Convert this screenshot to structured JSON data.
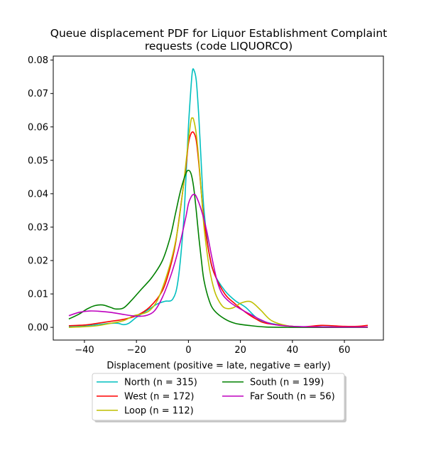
{
  "chart_data": {
    "type": "line",
    "title_line1": "Queue displacement PDF for Liquor Establishment Complaint",
    "title_line2": "requests (code LIQUORCO)",
    "xlabel": "Displacement (positive = late, negative = early)",
    "ylabel": "",
    "xlim": [
      -52,
      75
    ],
    "ylim": [
      -0.0038,
      0.0812
    ],
    "xticks": [
      -40,
      -20,
      0,
      20,
      40,
      60
    ],
    "yticks": [
      0.0,
      0.01,
      0.02,
      0.03,
      0.04,
      0.05,
      0.06,
      0.07,
      0.08
    ],
    "ytick_labels": [
      "0.00",
      "0.01",
      "0.02",
      "0.03",
      "0.04",
      "0.05",
      "0.06",
      "0.07",
      "0.08"
    ],
    "grid": false,
    "legend_placement": "below-center",
    "series": [
      {
        "name": "North (n = 315)",
        "color": "#00bfbf",
        "points": [
          [
            -46,
            0.0002
          ],
          [
            -40,
            0.0004
          ],
          [
            -35,
            0.0008
          ],
          [
            -30,
            0.0012
          ],
          [
            -27,
            0.0012
          ],
          [
            -25,
            0.0008
          ],
          [
            -23,
            0.0012
          ],
          [
            -20,
            0.003
          ],
          [
            -16,
            0.005
          ],
          [
            -12,
            0.007
          ],
          [
            -9,
            0.0078
          ],
          [
            -6,
            0.0085
          ],
          [
            -4,
            0.014
          ],
          [
            -2,
            0.03
          ],
          [
            -1,
            0.044
          ],
          [
            0,
            0.06
          ],
          [
            1,
            0.072
          ],
          [
            1.5,
            0.0765
          ],
          [
            2,
            0.0772
          ],
          [
            3,
            0.074
          ],
          [
            4,
            0.063
          ],
          [
            5,
            0.048
          ],
          [
            6,
            0.035
          ],
          [
            8,
            0.022
          ],
          [
            10,
            0.016
          ],
          [
            14,
            0.011
          ],
          [
            18,
            0.008
          ],
          [
            22,
            0.006
          ],
          [
            26,
            0.003
          ],
          [
            30,
            0.0015
          ],
          [
            40,
            0.0003
          ],
          [
            50,
            0.0002
          ],
          [
            60,
            0.0001
          ],
          [
            69,
            0.0001
          ]
        ]
      },
      {
        "name": "West (n = 172)",
        "color": "#ff0000",
        "points": [
          [
            -46,
            0.0005
          ],
          [
            -40,
            0.0007
          ],
          [
            -35,
            0.0012
          ],
          [
            -30,
            0.0018
          ],
          [
            -25,
            0.0024
          ],
          [
            -20,
            0.0035
          ],
          [
            -15,
            0.006
          ],
          [
            -10,
            0.011
          ],
          [
            -7,
            0.018
          ],
          [
            -5,
            0.025
          ],
          [
            -3,
            0.036
          ],
          [
            -1,
            0.048
          ],
          [
            0,
            0.055
          ],
          [
            1,
            0.058
          ],
          [
            2,
            0.0583
          ],
          [
            3,
            0.056
          ],
          [
            4,
            0.049
          ],
          [
            5,
            0.04
          ],
          [
            6,
            0.032
          ],
          [
            8,
            0.022
          ],
          [
            10,
            0.016
          ],
          [
            14,
            0.01
          ],
          [
            18,
            0.007
          ],
          [
            22,
            0.0045
          ],
          [
            26,
            0.0025
          ],
          [
            30,
            0.0012
          ],
          [
            40,
            0.0003
          ],
          [
            45,
            0.0002
          ],
          [
            51,
            0.0006
          ],
          [
            55,
            0.0005
          ],
          [
            60,
            0.0003
          ],
          [
            65,
            0.0003
          ],
          [
            69,
            0.0006
          ]
        ]
      },
      {
        "name": "Loop (n = 112)",
        "color": "#bfbf00",
        "points": [
          [
            -46,
            0.0
          ],
          [
            -40,
            0.0002
          ],
          [
            -35,
            0.0005
          ],
          [
            -30,
            0.0012
          ],
          [
            -25,
            0.002
          ],
          [
            -21,
            0.0035
          ],
          [
            -18,
            0.004
          ],
          [
            -15,
            0.005
          ],
          [
            -12,
            0.008
          ],
          [
            -9,
            0.014
          ],
          [
            -6,
            0.022
          ],
          [
            -4,
            0.03
          ],
          [
            -2,
            0.042
          ],
          [
            0,
            0.056
          ],
          [
            1,
            0.062
          ],
          [
            1.5,
            0.0626
          ],
          [
            2,
            0.0622
          ],
          [
            3,
            0.058
          ],
          [
            4,
            0.05
          ],
          [
            5,
            0.04
          ],
          [
            6,
            0.03
          ],
          [
            8,
            0.018
          ],
          [
            10,
            0.011
          ],
          [
            12,
            0.0075
          ],
          [
            14,
            0.0058
          ],
          [
            17,
            0.0058
          ],
          [
            20,
            0.0072
          ],
          [
            23,
            0.0078
          ],
          [
            25,
            0.0072
          ],
          [
            28,
            0.005
          ],
          [
            32,
            0.002
          ],
          [
            38,
            0.0005
          ],
          [
            45,
            0.0001
          ],
          [
            55,
            0.0
          ],
          [
            69,
            0.0
          ]
        ]
      },
      {
        "name": "South (n = 199)",
        "color": "#008000",
        "points": [
          [
            -46,
            0.0025
          ],
          [
            -42,
            0.004
          ],
          [
            -39,
            0.0055
          ],
          [
            -36,
            0.0065
          ],
          [
            -33,
            0.0067
          ],
          [
            -30,
            0.006
          ],
          [
            -28,
            0.0055
          ],
          [
            -25,
            0.0058
          ],
          [
            -22,
            0.008
          ],
          [
            -18,
            0.0115
          ],
          [
            -14,
            0.015
          ],
          [
            -10,
            0.02
          ],
          [
            -7,
            0.027
          ],
          [
            -5,
            0.034
          ],
          [
            -3,
            0.041
          ],
          [
            -1,
            0.046
          ],
          [
            0,
            0.047
          ],
          [
            1,
            0.046
          ],
          [
            2,
            0.042
          ],
          [
            3,
            0.035
          ],
          [
            4,
            0.027
          ],
          [
            5,
            0.02
          ],
          [
            6,
            0.014
          ],
          [
            8,
            0.008
          ],
          [
            10,
            0.005
          ],
          [
            14,
            0.0025
          ],
          [
            18,
            0.0012
          ],
          [
            24,
            0.0005
          ],
          [
            30,
            0.0001
          ],
          [
            40,
            0.0
          ],
          [
            69,
            0.0
          ]
        ]
      },
      {
        "name": "Far South (n = 56)",
        "color": "#bf00bf",
        "points": [
          [
            -46,
            0.0035
          ],
          [
            -42,
            0.0045
          ],
          [
            -38,
            0.0049
          ],
          [
            -34,
            0.0048
          ],
          [
            -30,
            0.0045
          ],
          [
            -26,
            0.004
          ],
          [
            -22,
            0.0035
          ],
          [
            -19,
            0.0033
          ],
          [
            -16,
            0.0036
          ],
          [
            -13,
            0.005
          ],
          [
            -10,
            0.009
          ],
          [
            -7,
            0.015
          ],
          [
            -5,
            0.02
          ],
          [
            -3,
            0.026
          ],
          [
            -1,
            0.033
          ],
          [
            0,
            0.037
          ],
          [
            1,
            0.039
          ],
          [
            2,
            0.0398
          ],
          [
            3,
            0.0392
          ],
          [
            5,
            0.035
          ],
          [
            7,
            0.029
          ],
          [
            9,
            0.021
          ],
          [
            11,
            0.014
          ],
          [
            13,
            0.01
          ],
          [
            16,
            0.0075
          ],
          [
            20,
            0.0055
          ],
          [
            24,
            0.0038
          ],
          [
            28,
            0.0022
          ],
          [
            32,
            0.001
          ],
          [
            38,
            0.0004
          ],
          [
            44,
            0.0002
          ],
          [
            55,
            0.0001
          ],
          [
            69,
            0.0001
          ]
        ]
      }
    ]
  }
}
